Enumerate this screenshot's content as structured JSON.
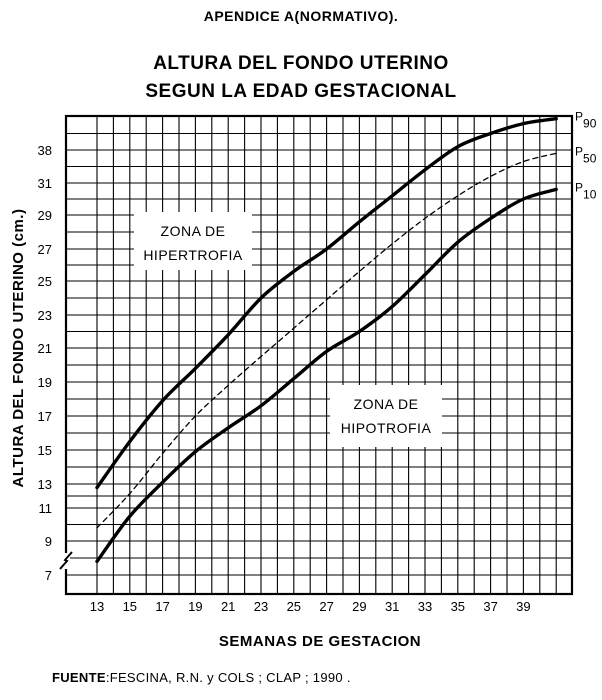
{
  "header": {
    "appendix": "APENDICE A(NORMATIVO).",
    "title_line1": "ALTURA DEL FONDO UTERINO",
    "title_line2": "SEGUN LA EDAD GESTACIONAL"
  },
  "source": {
    "label": "FUENTE",
    "text": ":FESCINA, R.N. y COLS ; CLAP ; 1990 ."
  },
  "chart_data": {
    "type": "line",
    "title": "ALTURA DEL FONDO UTERINO SEGUN LA EDAD GESTACIONAL",
    "xlabel": "SEMANAS DE GESTACION",
    "ylabel": "ALTURA DEL FONDO UTERINO (cm.)",
    "x_ticks": [
      "13",
      "15",
      "17",
      "19",
      "21",
      "23",
      "25",
      "27",
      "29",
      "31",
      "33",
      "35",
      "37",
      "39"
    ],
    "y_ticks": [
      "7",
      "9",
      "11",
      "13",
      "15",
      "17",
      "19",
      "21",
      "23",
      "25",
      "27",
      "29",
      "31",
      "38"
    ],
    "xlim": [
      13,
      41
    ],
    "grid": true,
    "series": [
      {
        "name": "P90",
        "style": "solid",
        "x": [
          13,
          15,
          17,
          19,
          21,
          23,
          25,
          27,
          29,
          31,
          33,
          35,
          37,
          39,
          41
        ],
        "y": [
          12.7,
          15.5,
          17.9,
          19.8,
          21.8,
          24.0,
          25.6,
          27.0,
          28.6,
          30.2,
          31.8,
          33.2,
          34.0,
          34.6,
          34.9
        ]
      },
      {
        "name": "P50",
        "style": "dashed",
        "x": [
          13,
          15,
          17,
          19,
          21,
          23,
          25,
          27,
          29,
          31,
          33,
          35,
          37,
          39,
          41
        ],
        "y": [
          9.8,
          12.2,
          14.8,
          17.0,
          18.8,
          20.5,
          22.2,
          23.9,
          25.6,
          27.3,
          28.8,
          30.2,
          31.4,
          32.3,
          32.8
        ]
      },
      {
        "name": "P10",
        "style": "solid",
        "x": [
          13,
          15,
          17,
          19,
          21,
          23,
          25,
          27,
          29,
          31,
          33,
          35,
          37,
          39,
          41
        ],
        "y": [
          7.8,
          10.5,
          13.1,
          14.9,
          16.3,
          17.6,
          19.2,
          20.8,
          22.0,
          23.5,
          25.4,
          27.4,
          28.8,
          30.0,
          30.6
        ]
      }
    ],
    "annotations": [
      {
        "line1": "ZONA DE",
        "line2": "HIPERTROFIA"
      },
      {
        "line1": "ZONA DE",
        "line2": "HIPOTROFIA"
      }
    ]
  }
}
